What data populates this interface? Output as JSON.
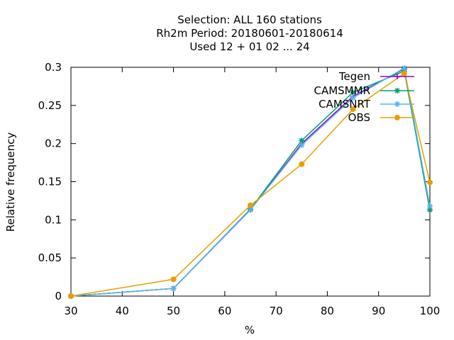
{
  "chart_data": {
    "type": "line",
    "title_lines": [
      "Selection: ALL     160 stations",
      "Rh2m  Period: 20180601-20180614",
      "Used  12 + 01 02 ... 24"
    ],
    "xlabel": "%",
    "ylabel": "Relative frequency",
    "xlim": [
      30,
      100
    ],
    "ylim": [
      0,
      0.3
    ],
    "xticks": [
      30,
      40,
      50,
      60,
      70,
      80,
      90,
      100
    ],
    "yticks": [
      0,
      0.05,
      0.1,
      0.15,
      0.2,
      0.25,
      0.3
    ],
    "xtick_labels": [
      "30",
      "40",
      "50",
      "60",
      "70",
      "80",
      "90",
      "100"
    ],
    "ytick_labels": [
      "0",
      "0.05",
      "0.1",
      "0.15",
      "0.2",
      "0.25",
      "0.3"
    ],
    "grid": false,
    "legend_position": "top-right",
    "series": [
      {
        "name": "Tegen",
        "color": "#9400d3",
        "marker": "plus",
        "x": [
          30,
          50,
          65,
          75,
          85,
          95,
          100
        ],
        "y": [
          0.0,
          0.01,
          0.113,
          0.2,
          0.262,
          0.298,
          0.113
        ]
      },
      {
        "name": "CAMSMMR",
        "color": "#009e73",
        "marker": "star",
        "x": [
          30,
          50,
          65,
          75,
          85,
          95,
          100
        ],
        "y": [
          0.0,
          0.01,
          0.114,
          0.204,
          0.267,
          0.295,
          0.113
        ]
      },
      {
        "name": "CAMSNRT",
        "color": "#56b4e9",
        "marker": "star",
        "x": [
          30,
          50,
          65,
          75,
          85,
          95,
          100
        ],
        "y": [
          0.0,
          0.01,
          0.113,
          0.198,
          0.26,
          0.299,
          0.118
        ]
      },
      {
        "name": "OBS",
        "color": "#e69f00",
        "marker": "circle",
        "x": [
          30,
          50,
          65,
          75,
          85,
          95,
          100
        ],
        "y": [
          0.0,
          0.022,
          0.119,
          0.173,
          0.245,
          0.292,
          0.149
        ]
      }
    ]
  }
}
